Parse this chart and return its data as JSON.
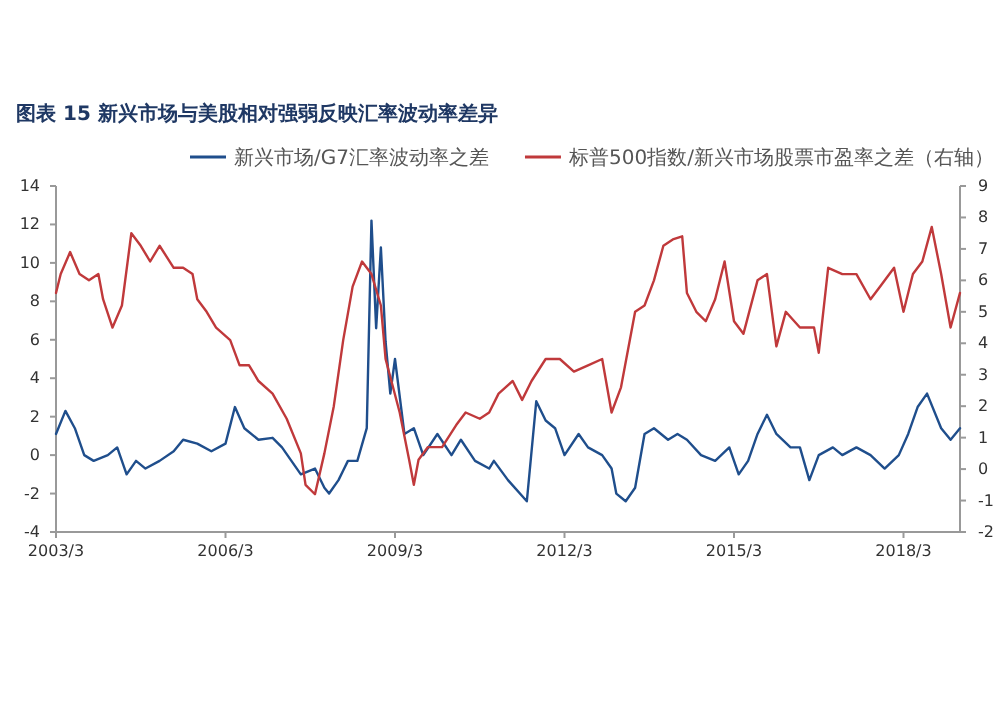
{
  "chart_data": {
    "type": "line",
    "title": "图表 15   新兴市场与美股相对强弱反映汇率波动率差异",
    "legend": "top",
    "grid": false,
    "marker": "none",
    "line_style": "solid",
    "xlim": [
      "2003-03",
      "2019-03"
    ],
    "xticks": [
      {
        "value": "2003-03",
        "label": "2003/3"
      },
      {
        "value": "2006-03",
        "label": "2006/3"
      },
      {
        "value": "2009-03",
        "label": "2009/3"
      },
      {
        "value": "2012-03",
        "label": "2012/3"
      },
      {
        "value": "2015-03",
        "label": "2015/3"
      },
      {
        "value": "2018-03",
        "label": "2018/3"
      }
    ],
    "ylim": [
      -4,
      14
    ],
    "yticks": [
      -4,
      -2,
      0,
      2,
      4,
      6,
      8,
      10,
      12,
      14
    ],
    "y2lim": [
      -2,
      9
    ],
    "y2ticks": [
      -2,
      -1,
      0,
      1,
      2,
      3,
      4,
      5,
      6,
      7,
      8,
      9
    ],
    "series": [
      {
        "name": "新兴市场/G7汇率波动率之差",
        "color": "#1f4e8c",
        "x": [
          "2003-03",
          "2003-05",
          "2003-07",
          "2003-09",
          "2003-11",
          "2004-02",
          "2004-04",
          "2004-06",
          "2004-08",
          "2004-10",
          "2005-01",
          "2005-04",
          "2005-06",
          "2005-09",
          "2005-12",
          "2006-03",
          "2006-05",
          "2006-07",
          "2006-10",
          "2007-01",
          "2007-03",
          "2007-05",
          "2007-07",
          "2007-10",
          "2007-12",
          "2008-01",
          "2008-03",
          "2008-04",
          "2008-05",
          "2008-07",
          "2008-09",
          "2008-10",
          "2008-11",
          "2008-12",
          "2009-01",
          "2009-02",
          "2009-03",
          "2009-05",
          "2009-07",
          "2009-09",
          "2009-12",
          "2010-03",
          "2010-05",
          "2010-08",
          "2010-11",
          "2010-12",
          "2011-03",
          "2011-07",
          "2011-09",
          "2011-11",
          "2012-01",
          "2012-03",
          "2012-06",
          "2012-08",
          "2012-11",
          "2013-01",
          "2013-02",
          "2013-04",
          "2013-06",
          "2013-08",
          "2013-10",
          "2014-01",
          "2014-03",
          "2014-05",
          "2014-08",
          "2014-11",
          "2015-02",
          "2015-04",
          "2015-06",
          "2015-08",
          "2015-10",
          "2015-12",
          "2016-03",
          "2016-05",
          "2016-07",
          "2016-09",
          "2016-12",
          "2017-02",
          "2017-05",
          "2017-08",
          "2017-11",
          "2018-02",
          "2018-04",
          "2018-06",
          "2018-08",
          "2018-11",
          "2019-01",
          "2019-03"
        ],
        "values": [
          1.1,
          2.3,
          1.4,
          0.0,
          -0.3,
          0.0,
          0.4,
          -1.0,
          -0.3,
          -0.7,
          -0.3,
          0.2,
          0.8,
          0.6,
          0.2,
          0.6,
          2.5,
          1.4,
          0.8,
          0.9,
          0.4,
          -0.3,
          -1.0,
          -0.7,
          -1.7,
          -2.0,
          -1.3,
          -0.8,
          -0.3,
          -0.3,
          1.4,
          12.2,
          6.6,
          10.8,
          5.9,
          3.2,
          5.0,
          1.1,
          1.4,
          0.0,
          1.1,
          0.0,
          0.8,
          -0.3,
          -0.7,
          -0.3,
          -1.3,
          -2.4,
          2.8,
          1.8,
          1.4,
          0.0,
          1.1,
          0.4,
          0.0,
          -0.7,
          -2.0,
          -2.4,
          -1.7,
          1.1,
          1.4,
          0.8,
          1.1,
          0.8,
          0.0,
          -0.3,
          0.4,
          -1.0,
          -0.3,
          1.1,
          2.1,
          1.1,
          0.4,
          0.4,
          -1.3,
          0.0,
          0.4,
          0.0,
          0.4,
          0.0,
          -0.7,
          0.0,
          1.1,
          2.5,
          3.2,
          1.4,
          0.8,
          1.4
        ]
      },
      {
        "name": "标普500指数/新兴市场股票市盈率之差（右轴）",
        "color": "#c0393b",
        "axis": "y2",
        "x": [
          "2003-03",
          "2003-04",
          "2003-06",
          "2003-08",
          "2003-10",
          "2003-12",
          "2004-01",
          "2004-03",
          "2004-05",
          "2004-07",
          "2004-09",
          "2004-11",
          "2005-01",
          "2005-04",
          "2005-06",
          "2005-08",
          "2005-09",
          "2005-11",
          "2006-01",
          "2006-04",
          "2006-06",
          "2006-08",
          "2006-10",
          "2007-01",
          "2007-04",
          "2007-07",
          "2007-08",
          "2007-10",
          "2007-12",
          "2008-02",
          "2008-04",
          "2008-06",
          "2008-08",
          "2008-10",
          "2008-12",
          "2009-01",
          "2009-04",
          "2009-06",
          "2009-07",
          "2009-08",
          "2009-10",
          "2010-01",
          "2010-04",
          "2010-06",
          "2010-09",
          "2010-11",
          "2011-01",
          "2011-04",
          "2011-06",
          "2011-08",
          "2011-11",
          "2012-02",
          "2012-05",
          "2012-08",
          "2012-11",
          "2013-01",
          "2013-03",
          "2013-06",
          "2013-08",
          "2013-10",
          "2013-12",
          "2014-02",
          "2014-04",
          "2014-05",
          "2014-07",
          "2014-09",
          "2014-11",
          "2015-01",
          "2015-03",
          "2015-05",
          "2015-08",
          "2015-10",
          "2015-12",
          "2016-02",
          "2016-05",
          "2016-08",
          "2016-09",
          "2016-11",
          "2017-02",
          "2017-05",
          "2017-08",
          "2017-10",
          "2018-01",
          "2018-03",
          "2018-05",
          "2018-07",
          "2018-09",
          "2018-11",
          "2019-01",
          "2019-03"
        ],
        "values": [
          5.6,
          6.2,
          6.9,
          6.2,
          6.0,
          6.2,
          5.4,
          4.5,
          5.2,
          7.5,
          7.1,
          6.6,
          7.1,
          6.4,
          6.4,
          6.2,
          5.4,
          5.0,
          4.5,
          4.1,
          3.3,
          3.3,
          2.8,
          2.4,
          1.6,
          0.5,
          -0.5,
          -0.8,
          0.5,
          2.0,
          4.1,
          5.8,
          6.6,
          6.2,
          5.2,
          3.5,
          1.8,
          0.3,
          -0.5,
          0.3,
          0.7,
          0.7,
          1.4,
          1.8,
          1.6,
          1.8,
          2.4,
          2.8,
          2.2,
          2.8,
          3.5,
          3.5,
          3.1,
          3.3,
          3.5,
          1.8,
          2.6,
          5.0,
          5.2,
          6.0,
          7.1,
          7.3,
          7.4,
          5.6,
          5.0,
          4.7,
          5.4,
          6.6,
          4.7,
          4.3,
          6.0,
          6.2,
          3.9,
          5.0,
          4.5,
          4.5,
          3.7,
          6.4,
          6.2,
          6.2,
          5.4,
          5.8,
          6.4,
          5.0,
          6.2,
          6.6,
          7.7,
          6.2,
          4.5,
          5.6
        ]
      }
    ]
  }
}
